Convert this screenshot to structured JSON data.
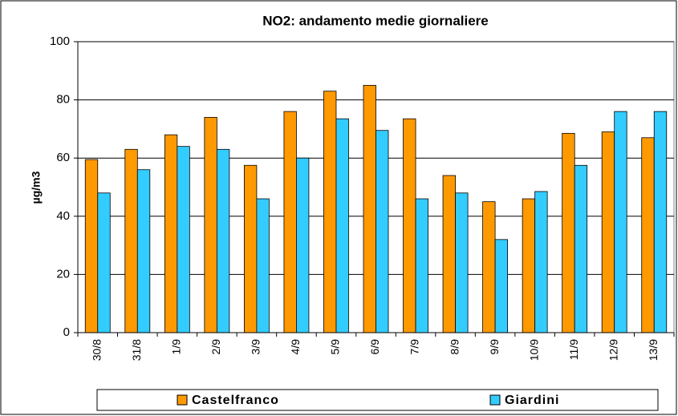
{
  "chart_data": {
    "type": "bar",
    "title": "NO2: andamento medie  giornaliere",
    "y_label": "µg/m3",
    "categories": [
      "30/8",
      "31/8",
      "1/9",
      "2/9",
      "3/9",
      "4/9",
      "5/9",
      "6/9",
      "7/9",
      "8/9",
      "9/9",
      "10/9",
      "11/9",
      "12/9",
      "13/9"
    ],
    "series": [
      {
        "name": "Castelfranco",
        "color": "#ff9900",
        "values": [
          59.5,
          63,
          68,
          74,
          57.5,
          76,
          83,
          85,
          73.5,
          54,
          45,
          46,
          68.5,
          69,
          67
        ]
      },
      {
        "name": "Giardini",
        "color": "#33ccff",
        "values": [
          48,
          56,
          64,
          63,
          46,
          60,
          73.5,
          69.5,
          46,
          48,
          32,
          48.5,
          57.5,
          76,
          76
        ]
      }
    ],
    "ylim": [
      0,
      100
    ],
    "yticks": [
      0,
      20,
      40,
      60,
      80,
      100
    ],
    "grid": true,
    "legend": "bottom"
  }
}
